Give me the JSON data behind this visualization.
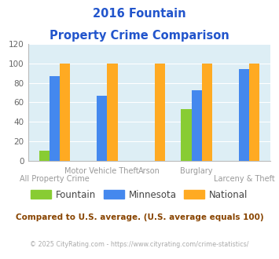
{
  "title_line1": "2016 Fountain",
  "title_line2": "Property Crime Comparison",
  "categories": [
    "All Property Crime",
    "Motor Vehicle Theft",
    "Arson",
    "Burglary",
    "Larceny & Theft"
  ],
  "series": {
    "Fountain": [
      10,
      0,
      0,
      53,
      0
    ],
    "Minnesota": [
      87,
      67,
      0,
      72,
      94
    ],
    "National": [
      100,
      100,
      100,
      100,
      100
    ]
  },
  "colors": {
    "Fountain": "#88cc33",
    "Minnesota": "#4488ee",
    "National": "#ffaa22"
  },
  "ylim": [
    0,
    120
  ],
  "yticks": [
    0,
    20,
    40,
    60,
    80,
    100,
    120
  ],
  "plot_bg": "#ddeef5",
  "grid_color": "#ffffff",
  "title_color": "#2255cc",
  "xlabel_color": "#999999",
  "legend_text_color": "#444444",
  "footer_text": "Compared to U.S. average. (U.S. average equals 100)",
  "copyright_text": "© 2025 CityRating.com - https://www.cityrating.com/crime-statistics/",
  "footer_color": "#884400",
  "copyright_color": "#aaaaaa",
  "bar_width": 0.22,
  "top_x_labels": {
    "1": "Motor Vehicle Theft",
    "2": "Arson",
    "3": "Burglary"
  },
  "bottom_x_labels": {
    "0": "All Property Crime",
    "4": "Larceny & Theft"
  }
}
